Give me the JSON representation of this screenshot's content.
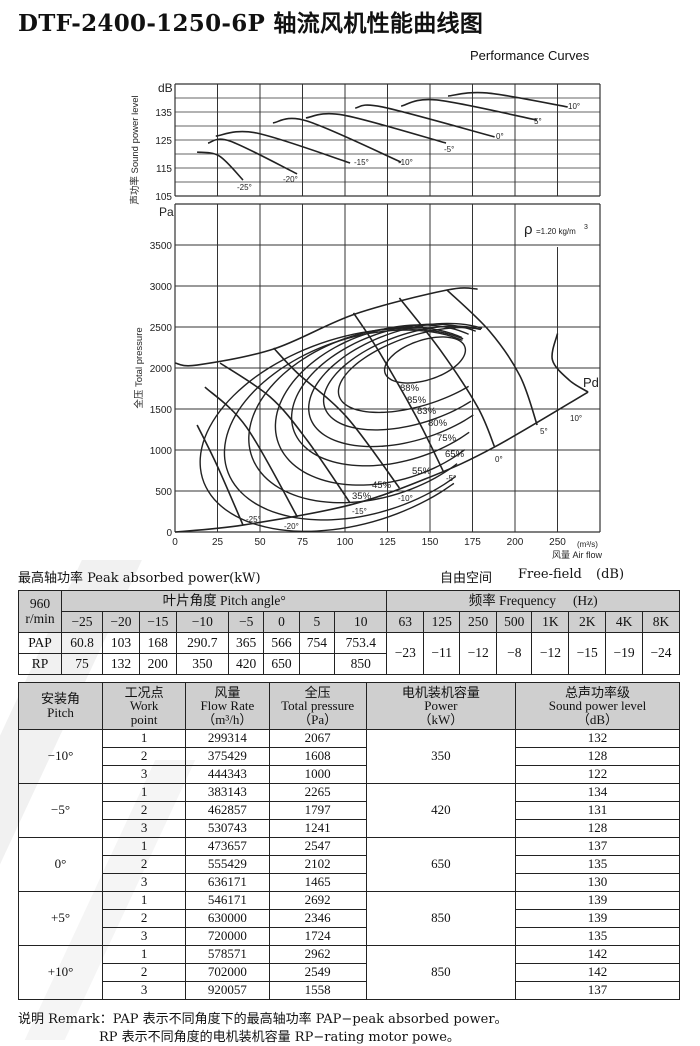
{
  "title": "DTF-2400-1250-6P 轴流风机性能曲线图",
  "subtitle": "Performance Curves",
  "chart_data": [
    {
      "type": "line",
      "ylabel": "声功率 Sound power level",
      "yunit": "dB",
      "ylim": [
        105,
        145
      ],
      "yticks": [
        "105",
        "115",
        "125",
        "135"
      ],
      "xlim": [
        0,
        250
      ],
      "grid": true,
      "series": [
        {
          "name": "-25°",
          "points": [
            [
              13,
              120.7
            ],
            [
              26,
              119.3
            ],
            [
              40,
              110.7
            ]
          ]
        },
        {
          "name": "-20°",
          "points": [
            [
              19.4,
              123.9
            ],
            [
              32.4,
              124.6
            ],
            [
              71.8,
              112.9
            ]
          ]
        },
        {
          "name": "-15°",
          "points": [
            [
              24,
              126.4
            ],
            [
              48,
              127.5
            ],
            [
              103,
              116.8
            ]
          ]
        },
        {
          "name": "-10°",
          "points": [
            [
              57.6,
              131.1
            ],
            [
              77.6,
              131.8
            ],
            [
              133,
              117.1
            ]
          ]
        },
        {
          "name": "-5°",
          "points": [
            [
              77,
              132.9
            ],
            [
              99,
              133.9
            ],
            [
              159.4,
              123.9
            ]
          ]
        },
        {
          "name": "0°",
          "points": [
            [
              106,
              136.4
            ],
            [
              122,
              136.8
            ],
            [
              188,
              126.1
            ]
          ]
        },
        {
          "name": "5°",
          "points": [
            [
              133,
              137.1
            ],
            [
              154,
              139.3
            ],
            [
              213,
              132.1
            ]
          ]
        },
        {
          "name": "10°",
          "points": [
            [
              160.6,
              140.7
            ],
            [
              183.5,
              141.8
            ],
            [
              231,
              136.8
            ]
          ]
        }
      ]
    },
    {
      "type": "line",
      "ylabel": "全压 Total pressure",
      "yunit": "Pa",
      "ylim": [
        0,
        4000
      ],
      "yticks": [
        "0",
        "500",
        "1000",
        "1500",
        "2000",
        "2500",
        "3000",
        "3500"
      ],
      "xlim": [
        0,
        250
      ],
      "xticks": [
        "0",
        "25",
        "50",
        "75",
        "100",
        "125",
        "150",
        "175",
        "200",
        "250"
      ],
      "xunit": "(m³/s)",
      "xlabel": "风量 Air flow",
      "grid": true,
      "density_note": "=1.20 kg/m",
      "density_symbol": "ρ",
      "density_exp": "3",
      "pd_label": "Pd",
      "pd_line": [
        [
          0,
          0
        ],
        [
          40,
          85
        ],
        [
          103,
          330
        ],
        [
          150,
          670
        ],
        [
          188,
          1037
        ],
        [
          243,
          1707
        ]
      ],
      "surge_envelope": [
        [
          0,
          2061
        ],
        [
          13,
          2036
        ],
        [
          58,
          2232
        ],
        [
          106,
          2659
        ],
        [
          160,
          2951
        ],
        [
          178,
          2963
        ]
      ],
      "series": [
        {
          "name": "-25°",
          "points": [
            [
              13,
              1305
            ],
            [
              25,
              800
            ],
            [
              40,
              85
            ]
          ]
        },
        {
          "name": "-20°",
          "points": [
            [
              17.6,
              1768
            ],
            [
              42,
              1280
            ],
            [
              72,
              183
            ]
          ]
        },
        {
          "name": "-15°",
          "points": [
            [
              26.5,
              2061
            ],
            [
              56,
              1646
            ],
            [
              77.6,
              1122
            ],
            [
              103,
              354
            ]
          ]
        },
        {
          "name": "-10°",
          "points": [
            [
              58,
              2244
            ],
            [
              72,
              1939
            ],
            [
              101,
              1402
            ],
            [
              132,
              537
            ]
          ]
        },
        {
          "name": "-5°",
          "points": [
            [
              105,
              2671
            ],
            [
              120,
              2200
            ],
            [
              142,
              1402
            ],
            [
              158,
              732
            ]
          ]
        },
        {
          "name": "0°",
          "points": [
            [
              132,
              2854
            ],
            [
              156,
              2220
            ],
            [
              178,
              1524
            ],
            [
              188,
              1037
            ]
          ]
        },
        {
          "name": "5°",
          "points": [
            [
              160,
              2951
            ],
            [
              185,
              2450
            ],
            [
              203,
              1900
            ],
            [
              213,
              1305
            ]
          ]
        },
        {
          "name": "10°",
          "points": [
            [
              225,
              2420
            ],
            [
              222,
              2100
            ],
            [
              232,
              1850
            ],
            [
              243,
              1707
            ]
          ]
        }
      ],
      "efficiency_contours": [
        "88%",
        "85%",
        "83%",
        "80%",
        "75%",
        "65%",
        "55%",
        "45%",
        "35%"
      ]
    }
  ],
  "table1": {
    "caption_left": "最高轴功率 Peak absorbed power(kW)",
    "caption_right": [
      "自由空间",
      "Free-field",
      "(dB)"
    ],
    "speed": "960",
    "speed_unit": "r/min",
    "pitch_header": "叶片角度 Pitch angle°",
    "freq_header": "频率 Frequency",
    "freq_unit": "(Hz)",
    "pitch_angles": [
      "−25",
      "−20",
      "−15",
      "−10",
      "−5",
      "0",
      "5",
      "10"
    ],
    "frequencies": [
      "63",
      "125",
      "250",
      "500",
      "1K",
      "2K",
      "4K",
      "8K"
    ],
    "pap_label": "PAP",
    "rp_label": "RP",
    "pap": [
      "60.8",
      "103",
      "168",
      "290.7",
      "365",
      "566",
      "754",
      "753.4"
    ],
    "rp": [
      "75",
      "132",
      "200",
      "350",
      "420",
      "650",
      "",
      "850"
    ],
    "freq_correction": [
      "−23",
      "−11",
      "−12",
      "−8",
      "−12",
      "−15",
      "−19",
      "−24"
    ]
  },
  "table2": {
    "headers": [
      [
        "安装角",
        "Pitch"
      ],
      [
        "工况点",
        "Work",
        "point"
      ],
      [
        "风量",
        "Flow Rate",
        "（m³/h）"
      ],
      [
        "全压",
        "Total pressure",
        "（Pa）"
      ],
      [
        "电机装机容量",
        "Power",
        "（kW）"
      ],
      [
        "总声功率级",
        "Sound power level",
        "（dB）"
      ]
    ],
    "groups": [
      {
        "pitch": "−10°",
        "power": "350",
        "rows": [
          [
            "1",
            "299314",
            "2067",
            "132"
          ],
          [
            "2",
            "375429",
            "1608",
            "128"
          ],
          [
            "3",
            "444343",
            "1000",
            "122"
          ]
        ]
      },
      {
        "pitch": "−5°",
        "power": "420",
        "rows": [
          [
            "1",
            "383143",
            "2265",
            "134"
          ],
          [
            "2",
            "462857",
            "1797",
            "131"
          ],
          [
            "3",
            "530743",
            "1241",
            "128"
          ]
        ]
      },
      {
        "pitch": "0°",
        "power": "650",
        "rows": [
          [
            "1",
            "473657",
            "2547",
            "137"
          ],
          [
            "2",
            "555429",
            "2102",
            "135"
          ],
          [
            "3",
            "636171",
            "1465",
            "130"
          ]
        ]
      },
      {
        "pitch": "+5°",
        "power": "850",
        "rows": [
          [
            "1",
            "546171",
            "2692",
            "139"
          ],
          [
            "2",
            "630000",
            "2346",
            "139"
          ],
          [
            "3",
            "720000",
            "1724",
            "135"
          ]
        ]
      },
      {
        "pitch": "+10°",
        "power": "850",
        "rows": [
          [
            "1",
            "578571",
            "2962",
            "142"
          ],
          [
            "2",
            "702000",
            "2549",
            "142"
          ],
          [
            "3",
            "920057",
            "1558",
            "137"
          ]
        ]
      }
    ]
  },
  "remark": {
    "line1": "说明 Remark：PAP 表示不同角度下的最高轴功率 PAP−peak absorbed power。",
    "line2": "RP 表示不同角度的电机装机容量 RP−rating motor powe。"
  }
}
